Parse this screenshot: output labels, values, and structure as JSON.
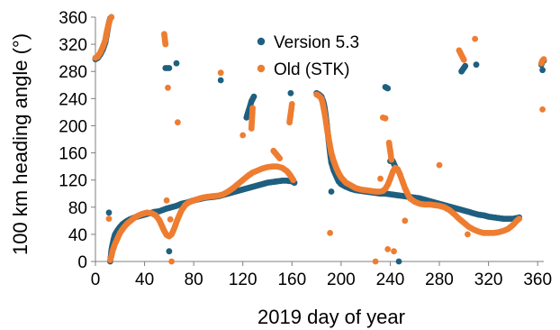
{
  "chart_data": {
    "type": "scatter",
    "title": "",
    "xlabel": "2019 day of year",
    "ylabel": "100 km heading angle (°)",
    "xlim": [
      0,
      365
    ],
    "ylim": [
      0,
      360
    ],
    "xticks": [
      0,
      40,
      80,
      120,
      160,
      200,
      240,
      280,
      320,
      360
    ],
    "yticks": [
      0,
      40,
      80,
      120,
      160,
      200,
      240,
      280,
      320,
      360
    ],
    "grid": false,
    "legend_position": "top-center",
    "series": [
      {
        "name": "Version 5.3",
        "color": "#1f5f7f",
        "points": [
          [
            0,
            298
          ],
          [
            2,
            300
          ],
          [
            4,
            305
          ],
          [
            6,
            312
          ],
          [
            8,
            322
          ],
          [
            9,
            332
          ],
          [
            10,
            342
          ],
          [
            11,
            352
          ],
          [
            12,
            358
          ],
          [
            13,
            360
          ],
          [
            12,
            0
          ],
          [
            12.5,
            8
          ],
          [
            13,
            16
          ],
          [
            14,
            26
          ],
          [
            15,
            34
          ],
          [
            16,
            40
          ],
          [
            18,
            46
          ],
          [
            20,
            51
          ],
          [
            22,
            55
          ],
          [
            25,
            59
          ],
          [
            28,
            62
          ],
          [
            32,
            65
          ],
          [
            36,
            67
          ],
          [
            40,
            69
          ],
          [
            44,
            71
          ],
          [
            48,
            73
          ],
          [
            52,
            74
          ],
          [
            55,
            76
          ],
          [
            58,
            78
          ],
          [
            62,
            80
          ],
          [
            66,
            82
          ],
          [
            70,
            85
          ],
          [
            75,
            87
          ],
          [
            80,
            90
          ],
          [
            85,
            92
          ],
          [
            90,
            94
          ],
          [
            95,
            95
          ],
          [
            100,
            96
          ],
          [
            104,
            98
          ],
          [
            108,
            100
          ],
          [
            112,
            102
          ],
          [
            116,
            104
          ],
          [
            120,
            106
          ],
          [
            124,
            108
          ],
          [
            128,
            110
          ],
          [
            132,
            112
          ],
          [
            136,
            114
          ],
          [
            140,
            116
          ],
          [
            144,
            117
          ],
          [
            148,
            118
          ],
          [
            152,
            119
          ],
          [
            156,
            119
          ],
          [
            160,
            118
          ],
          [
            162,
            116
          ],
          [
            180,
            248
          ],
          [
            182,
            246
          ],
          [
            184,
            243
          ],
          [
            185,
            238
          ],
          [
            186,
            232
          ],
          [
            187,
            222
          ],
          [
            188,
            208
          ],
          [
            189,
            192
          ],
          [
            190,
            176
          ],
          [
            191,
            160
          ],
          [
            192,
            146
          ],
          [
            194,
            134
          ],
          [
            196,
            126
          ],
          [
            198,
            118
          ],
          [
            200,
            114
          ],
          [
            204,
            110
          ],
          [
            208,
            107
          ],
          [
            212,
            105
          ],
          [
            216,
            104
          ],
          [
            220,
            103
          ],
          [
            224,
            102
          ],
          [
            228,
            101
          ],
          [
            232,
            100
          ],
          [
            236,
            100
          ],
          [
            240,
            99
          ],
          [
            244,
            98
          ],
          [
            248,
            97
          ],
          [
            252,
            96
          ],
          [
            256,
            95
          ],
          [
            260,
            94
          ],
          [
            264,
            93
          ],
          [
            268,
            91
          ],
          [
            272,
            89
          ],
          [
            276,
            87
          ],
          [
            280,
            85
          ],
          [
            284,
            83
          ],
          [
            288,
            81
          ],
          [
            292,
            79
          ],
          [
            296,
            77
          ],
          [
            300,
            75
          ],
          [
            304,
            73
          ],
          [
            308,
            71
          ],
          [
            312,
            69
          ],
          [
            316,
            68
          ],
          [
            320,
            66
          ],
          [
            324,
            65
          ],
          [
            328,
            64
          ],
          [
            332,
            63
          ],
          [
            336,
            63
          ],
          [
            340,
            63
          ],
          [
            343,
            64
          ],
          [
            345,
            65
          ],
          [
            363,
            290
          ],
          [
            364,
            295
          ],
          [
            365,
            296
          ],
          [
            11,
            72
          ],
          [
            57,
            285
          ],
          [
            60,
            285
          ],
          [
            66,
            292
          ],
          [
            60,
            15
          ],
          [
            102,
            267
          ],
          [
            123,
            212
          ],
          [
            127,
            236
          ],
          [
            129,
            243
          ],
          [
            147,
            118
          ],
          [
            159,
            248
          ],
          [
            192,
            103
          ],
          [
            236,
            257
          ],
          [
            238,
            255
          ],
          [
            240,
            148
          ],
          [
            242,
            148
          ],
          [
            244,
            140
          ],
          [
            247,
            0
          ],
          [
            298,
            280
          ],
          [
            301,
            288
          ],
          [
            310,
            290
          ],
          [
            364,
            282
          ]
        ]
      },
      {
        "name": "Old (STK)",
        "color": "#ee7d31",
        "points": [
          [
            0,
            300
          ],
          [
            2,
            302
          ],
          [
            4,
            308
          ],
          [
            6,
            316
          ],
          [
            8,
            326
          ],
          [
            9,
            336
          ],
          [
            10,
            344
          ],
          [
            11,
            352
          ],
          [
            12,
            357
          ],
          [
            13,
            360
          ],
          [
            12,
            2
          ],
          [
            13,
            8
          ],
          [
            14,
            16
          ],
          [
            16,
            26
          ],
          [
            18,
            34
          ],
          [
            20,
            42
          ],
          [
            23,
            50
          ],
          [
            26,
            56
          ],
          [
            30,
            62
          ],
          [
            34,
            67
          ],
          [
            38,
            70
          ],
          [
            42,
            72
          ],
          [
            46,
            71
          ],
          [
            49,
            68
          ],
          [
            52,
            61
          ],
          [
            54,
            53
          ],
          [
            56,
            45
          ],
          [
            58,
            39
          ],
          [
            60,
            37
          ],
          [
            62,
            40
          ],
          [
            64,
            48
          ],
          [
            66,
            58
          ],
          [
            68,
            67
          ],
          [
            70,
            75
          ],
          [
            73,
            83
          ],
          [
            76,
            87
          ],
          [
            80,
            90
          ],
          [
            85,
            93
          ],
          [
            90,
            95
          ],
          [
            95,
            96
          ],
          [
            100,
            97
          ],
          [
            104,
            99
          ],
          [
            108,
            103
          ],
          [
            112,
            108
          ],
          [
            116,
            114
          ],
          [
            120,
            120
          ],
          [
            124,
            126
          ],
          [
            128,
            131
          ],
          [
            132,
            134
          ],
          [
            136,
            137
          ],
          [
            140,
            139
          ],
          [
            144,
            140
          ],
          [
            148,
            140
          ],
          [
            152,
            138
          ],
          [
            156,
            133
          ],
          [
            159,
            126
          ],
          [
            161,
            120
          ],
          [
            180,
            246
          ],
          [
            182,
            244
          ],
          [
            184,
            240
          ],
          [
            185,
            233
          ],
          [
            186,
            224
          ],
          [
            187,
            214
          ],
          [
            188,
            202
          ],
          [
            189,
            190
          ],
          [
            190,
            180
          ],
          [
            191,
            170
          ],
          [
            192,
            160
          ],
          [
            194,
            148
          ],
          [
            196,
            138
          ],
          [
            198,
            130
          ],
          [
            200,
            124
          ],
          [
            204,
            116
          ],
          [
            208,
            112
          ],
          [
            212,
            108
          ],
          [
            216,
            106
          ],
          [
            220,
            105
          ],
          [
            224,
            104
          ],
          [
            228,
            103
          ],
          [
            232,
            103
          ],
          [
            234,
            104
          ],
          [
            236,
            107
          ],
          [
            238,
            113
          ],
          [
            240,
            122
          ],
          [
            242,
            132
          ],
          [
            244,
            138
          ],
          [
            246,
            136
          ],
          [
            248,
            128
          ],
          [
            250,
            118
          ],
          [
            252,
            108
          ],
          [
            254,
            100
          ],
          [
            256,
            93
          ],
          [
            260,
            88
          ],
          [
            264,
            85
          ],
          [
            268,
            84
          ],
          [
            272,
            84
          ],
          [
            276,
            83
          ],
          [
            280,
            82
          ],
          [
            284,
            80
          ],
          [
            288,
            76
          ],
          [
            292,
            70
          ],
          [
            296,
            63
          ],
          [
            300,
            57
          ],
          [
            304,
            51
          ],
          [
            308,
            47
          ],
          [
            312,
            44
          ],
          [
            316,
            42
          ],
          [
            320,
            42
          ],
          [
            324,
            42
          ],
          [
            328,
            43
          ],
          [
            332,
            45
          ],
          [
            336,
            48
          ],
          [
            340,
            54
          ],
          [
            343,
            60
          ],
          [
            345,
            63
          ],
          [
            363,
            292
          ],
          [
            364,
            296
          ],
          [
            365,
            298
          ],
          [
            11,
            63
          ],
          [
            56,
            335
          ],
          [
            57,
            320
          ],
          [
            58,
            90
          ],
          [
            59,
            256
          ],
          [
            61,
            62
          ],
          [
            62,
            0
          ],
          [
            67,
            205
          ],
          [
            102,
            278
          ],
          [
            120,
            186
          ],
          [
            127,
            196
          ],
          [
            128,
            226
          ],
          [
            145,
            163
          ],
          [
            150,
            152
          ],
          [
            158,
            205
          ],
          [
            160,
            232
          ],
          [
            191,
            42
          ],
          [
            228,
            0
          ],
          [
            232,
            122
          ],
          [
            234,
            212
          ],
          [
            236,
            211
          ],
          [
            238,
            18
          ],
          [
            239,
            175
          ],
          [
            241,
            150
          ],
          [
            243,
            15
          ],
          [
            252,
            60
          ],
          [
            280,
            142
          ],
          [
            296,
            311
          ],
          [
            300,
            297
          ],
          [
            303,
            40
          ],
          [
            309,
            328
          ],
          [
            364,
            224
          ]
        ]
      }
    ]
  }
}
